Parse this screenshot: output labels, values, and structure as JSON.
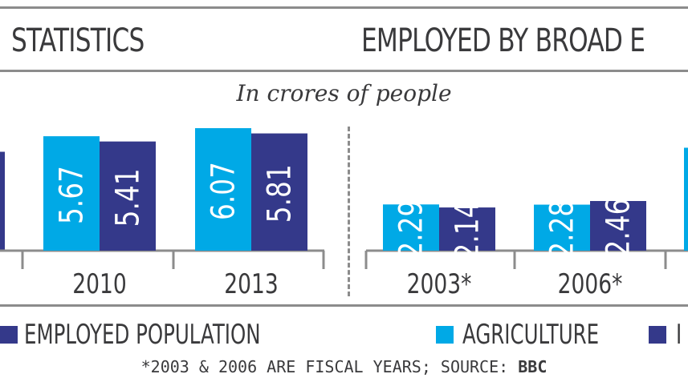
{
  "headings": {
    "left": "STATISTICS",
    "right": "EMPLOYED BY BROAD E"
  },
  "subtitle": "In crores of people",
  "legend": {
    "item1": "EMPLOYED POPULATION",
    "item2": "AGRICULTURE",
    "item3": "I"
  },
  "footnote": {
    "text": "*2003 & 2006 ARE FISCAL YEARS; SOURCE: ",
    "source": "BBC"
  },
  "colors": {
    "light": "#00a9e6",
    "dark": "#34398a",
    "text": "#3a3a3c",
    "rule": "#8c8c8c"
  },
  "chart_data": [
    {
      "type": "bar",
      "categories": [
        "2010",
        "2013"
      ],
      "series": [
        {
          "values": [
            5.67,
            6.07
          ]
        },
        {
          "name": "EMPLOYED POPULATION",
          "values": [
            5.41,
            5.81
          ]
        }
      ],
      "ylim": [
        0,
        6.5
      ],
      "partial_left_bar": true
    },
    {
      "type": "bar",
      "categories": [
        "2003*",
        "2006*"
      ],
      "series": [
        {
          "name": "AGRICULTURE",
          "values": [
            2.29,
            2.28
          ]
        },
        {
          "values": [
            2.14,
            2.46
          ]
        }
      ],
      "ylim": [
        0,
        6.5
      ],
      "partial_right_bar": true
    }
  ]
}
